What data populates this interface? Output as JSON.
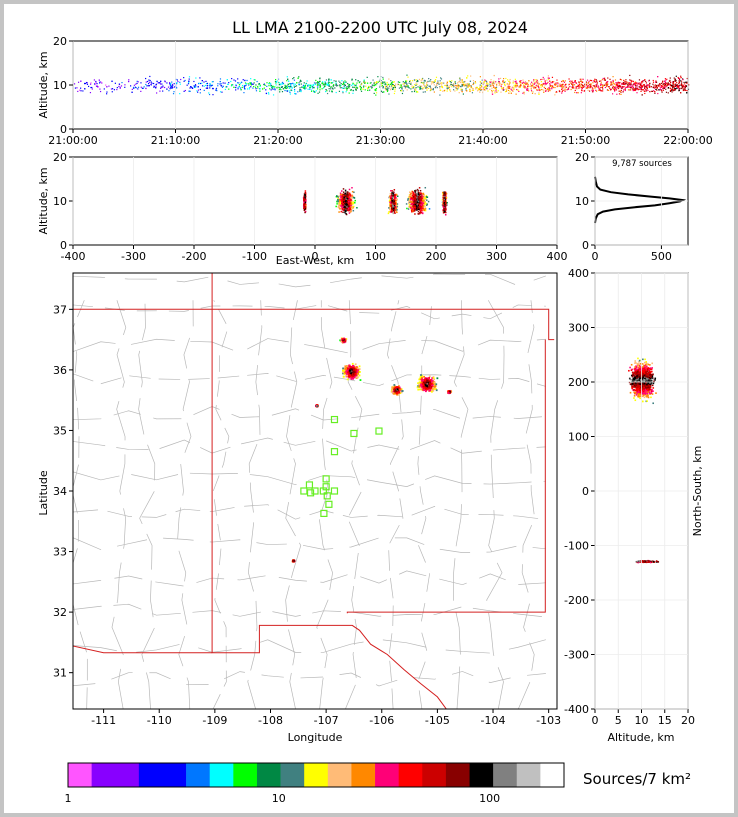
{
  "title": "LL LMA 2100-2200 UTC July 08, 2024",
  "colors": {
    "state_border": "#d42020",
    "county_border": "#b8b8b8",
    "station": "#66ee22",
    "histogram": "#000000"
  },
  "chart_data": [
    {
      "name": "altitude-time",
      "type": "scatter",
      "xlabel": "",
      "ylabel": "Altitude, km",
      "xlim": [
        "21:00:00",
        "22:00:00"
      ],
      "ylim": [
        0,
        20
      ],
      "xticks": [
        "21:00:00",
        "21:10:00",
        "21:20:00",
        "21:30:00",
        "21:40:00",
        "21:50:00",
        "22:00:00"
      ],
      "yticks": [
        0,
        10,
        20
      ],
      "points_summary": {
        "altitude_band_km": [
          7,
          13
        ],
        "density_increasing_after": "21:25:00"
      }
    },
    {
      "name": "altitude-eastwest",
      "type": "scatter",
      "xlabel": "East-West, km",
      "ylabel": "Altitude, km",
      "xlim": [
        -400,
        400
      ],
      "ylim": [
        0,
        20
      ],
      "xticks": [
        -400,
        -300,
        -200,
        -100,
        0,
        100,
        200,
        300,
        400
      ],
      "yticks": [
        0,
        10,
        20
      ],
      "clusters": [
        {
          "x_km": -18,
          "alt_km": 10,
          "spread_x_km": 2
        },
        {
          "x_km": 50,
          "alt_km": 10,
          "spread_x_km": 12
        },
        {
          "x_km": 128,
          "alt_km": 10,
          "spread_x_km": 6
        },
        {
          "x_km": 168,
          "alt_km": 10,
          "spread_x_km": 14
        },
        {
          "x_km": 213,
          "alt_km": 10,
          "spread_x_km": 3
        }
      ]
    },
    {
      "name": "altitude-histogram",
      "type": "line",
      "xlim": [
        0,
        700
      ],
      "ylim": [
        0,
        20
      ],
      "xticks": [
        0,
        500
      ],
      "yticks": [
        0,
        10,
        20
      ],
      "annotation": "9,787 sources",
      "profile": [
        [
          0,
          5
        ],
        [
          5,
          6
        ],
        [
          20,
          7
        ],
        [
          60,
          7.6
        ],
        [
          150,
          8.1
        ],
        [
          300,
          8.6
        ],
        [
          450,
          9.0
        ],
        [
          560,
          9.5
        ],
        [
          640,
          9.9
        ],
        [
          660,
          10.2
        ],
        [
          560,
          10.6
        ],
        [
          420,
          11.0
        ],
        [
          250,
          11.5
        ],
        [
          120,
          12.0
        ],
        [
          40,
          12.6
        ],
        [
          15,
          13.3
        ],
        [
          5,
          14.5
        ],
        [
          0,
          15.5
        ]
      ]
    },
    {
      "name": "plan-view-map",
      "type": "scatter",
      "xlabel": "Longitude",
      "ylabel": "Latitude",
      "xlim": [
        -111.55,
        -102.85
      ],
      "ylim": [
        30.4,
        37.6
      ],
      "xticks": [
        -111,
        -110,
        -109,
        -108,
        -107,
        -106,
        -105,
        -104,
        -103
      ],
      "yticks": [
        31,
        32,
        33,
        34,
        35,
        36,
        37
      ],
      "clusters": [
        {
          "lon": -106.55,
          "lat": 35.98,
          "r_deg": 0.17
        },
        {
          "lon": -106.7,
          "lat": 36.5,
          "r_deg": 0.05
        },
        {
          "lon": -105.75,
          "lat": 35.68,
          "r_deg": 0.1
        },
        {
          "lon": -105.2,
          "lat": 35.78,
          "r_deg": 0.18
        },
        {
          "lon": -104.8,
          "lat": 35.65,
          "r_deg": 0.03
        },
        {
          "lon": -107.18,
          "lat": 35.42,
          "r_deg": 0.02
        },
        {
          "lon": -107.6,
          "lat": 32.86,
          "r_deg": 0.02
        }
      ],
      "stations": [
        [
          -106.85,
          35.18
        ],
        [
          -106.5,
          34.95
        ],
        [
          -106.05,
          34.99
        ],
        [
          -106.85,
          34.65
        ],
        [
          -107.0,
          34.2
        ],
        [
          -107.0,
          34.07
        ],
        [
          -107.3,
          34.1
        ],
        [
          -107.4,
          34.0
        ],
        [
          -107.2,
          34.0
        ],
        [
          -107.05,
          34.0
        ],
        [
          -106.85,
          34.0
        ],
        [
          -106.98,
          33.92
        ],
        [
          -106.95,
          33.78
        ],
        [
          -107.04,
          33.63
        ],
        [
          -107.28,
          33.97
        ]
      ]
    },
    {
      "name": "northsouth-altitude",
      "type": "scatter",
      "xlabel": "Altitude, km",
      "ylabel": "North-South, km",
      "xlim": [
        0,
        20
      ],
      "ylim": [
        -400,
        400
      ],
      "xticks": [
        0,
        5,
        10,
        15,
        20
      ],
      "yticks": [
        -400,
        -300,
        -200,
        -100,
        0,
        100,
        200,
        300,
        400
      ],
      "clusters": [
        {
          "alt_km": 10,
          "ns_km": 205,
          "spread_ns_km": 40
        },
        {
          "alt_km": 11,
          "ns_km": -128,
          "spread_ns_km": 2
        }
      ]
    },
    {
      "name": "density-colorbar",
      "type": "heatmap",
      "label": "Sources/7 km²",
      "scale": "log",
      "tick_labels": [
        "1",
        "10",
        "100"
      ],
      "colors": [
        "#ff55ff",
        "#8800ff",
        "#8800ff",
        "#0000ff",
        "#0000ff",
        "#0077ff",
        "#00ffff",
        "#00ff00",
        "#008844",
        "#408080",
        "#ffff00",
        "#ffbb77",
        "#ff8800",
        "#ff0077",
        "#ff0000",
        "#cc0000",
        "#880000",
        "#000000",
        "#808080",
        "#c0c0c0",
        "#ffffff"
      ]
    }
  ]
}
